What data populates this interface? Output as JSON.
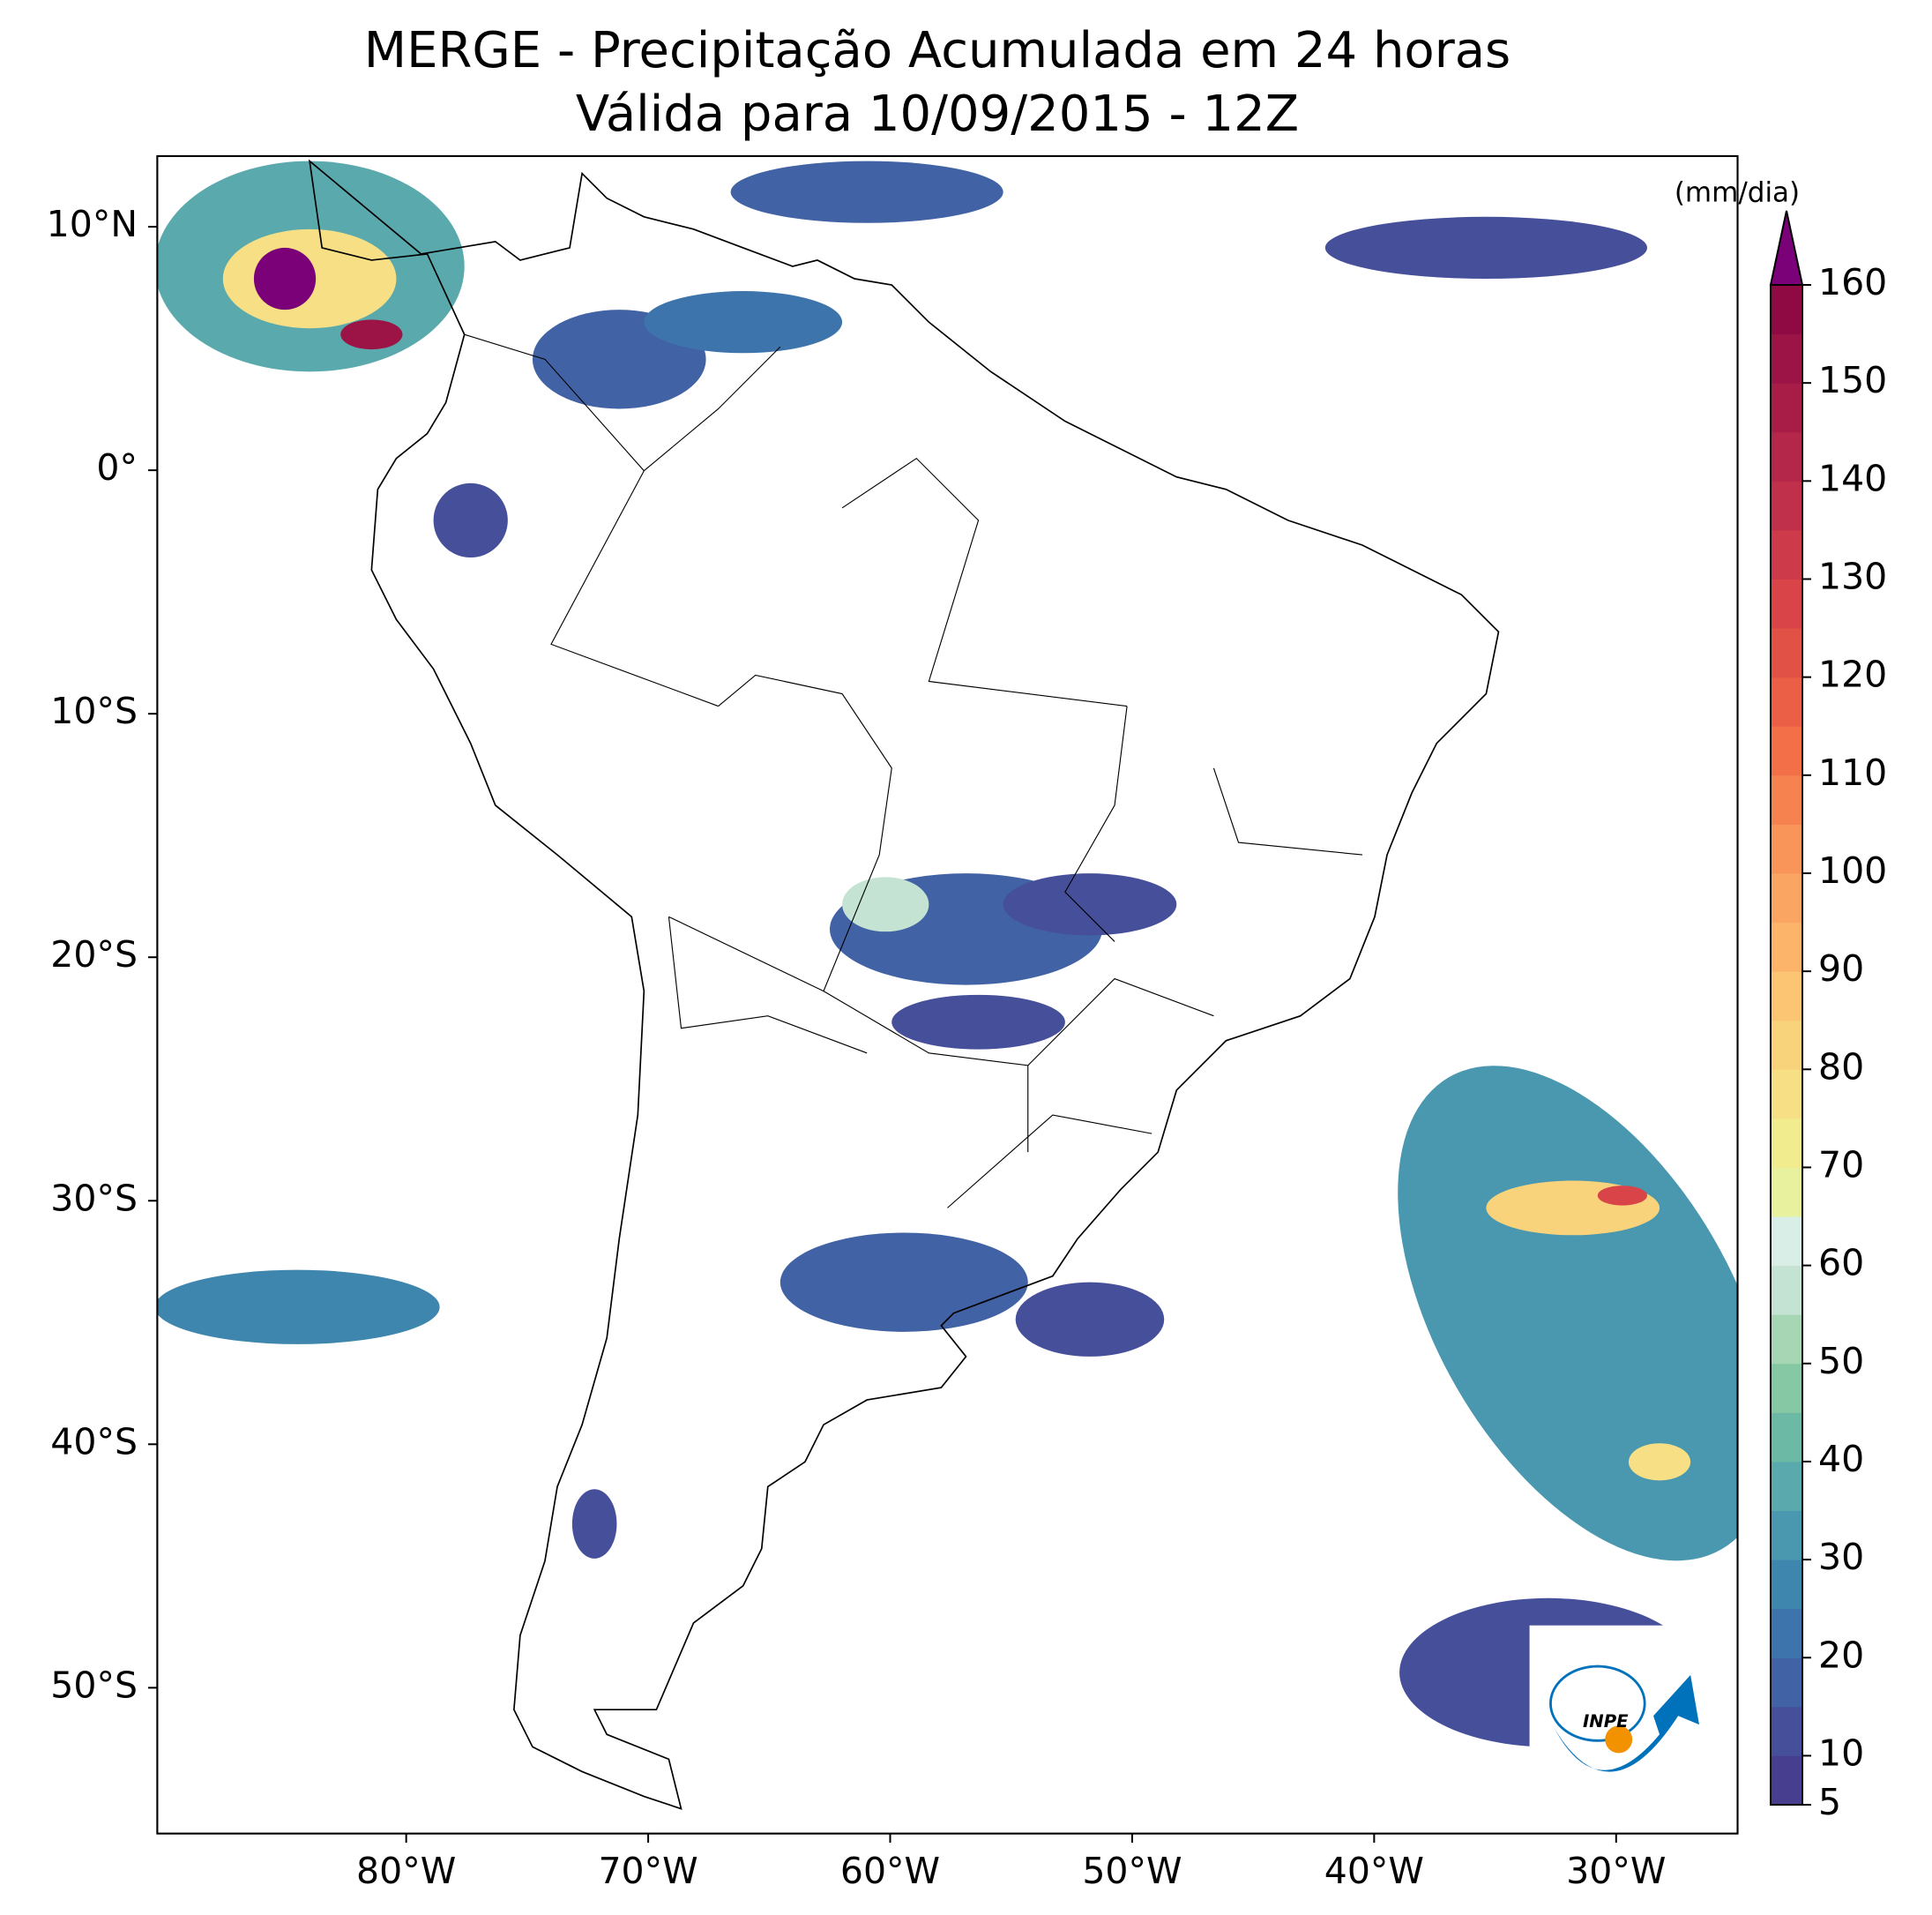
{
  "chart_data": {
    "type": "map",
    "title": "MERGE - Precipitação Acumulada em 24 horas",
    "subtitle": "Válida para 10/09/2015 - 12Z",
    "xlim": [
      -90.3,
      -25
    ],
    "ylim": [
      -56,
      12.9
    ],
    "xticks": [
      {
        "value": -80,
        "label": "80°W"
      },
      {
        "value": -70,
        "label": "70°W"
      },
      {
        "value": -60,
        "label": "60°W"
      },
      {
        "value": -50,
        "label": "50°W"
      },
      {
        "value": -40,
        "label": "40°W"
      },
      {
        "value": -30,
        "label": "30°W"
      }
    ],
    "yticks": [
      {
        "value": 10,
        "label": "10°N"
      },
      {
        "value": 0,
        "label": "0°"
      },
      {
        "value": -10,
        "label": "10°S"
      },
      {
        "value": -20,
        "label": "20°S"
      },
      {
        "value": -30,
        "label": "30°S"
      },
      {
        "value": -40,
        "label": "40°S"
      },
      {
        "value": -50,
        "label": "50°S"
      }
    ],
    "colorbar": {
      "label": "(mm/dia)",
      "clim": [
        5,
        160
      ],
      "ticks": [
        5,
        10,
        20,
        30,
        40,
        50,
        60,
        70,
        80,
        90,
        100,
        110,
        120,
        130,
        140,
        150,
        160
      ],
      "colors": [
        "#473e8f",
        "#464f9a",
        "#4162a4",
        "#3d74ab",
        "#3f86ae",
        "#4a98af",
        "#5aa9ad",
        "#6cb9a6",
        "#86c8a3",
        "#a6d6b3",
        "#c5e3d3",
        "#d8eee6",
        "#e8f29e",
        "#f1ec8e",
        "#f6df85",
        "#f9d27c",
        "#fbc574",
        "#fcb46a",
        "#fba562",
        "#f99558",
        "#f6824f",
        "#f26f47",
        "#ea5f45",
        "#e15146",
        "#d84448",
        "#cd3a4a",
        "#c1304b",
        "#b4264a",
        "#a81c48",
        "#9c1346",
        "#8f0a43"
      ],
      "extend_color": "#7a0177"
    },
    "logo_text": "INPE"
  }
}
